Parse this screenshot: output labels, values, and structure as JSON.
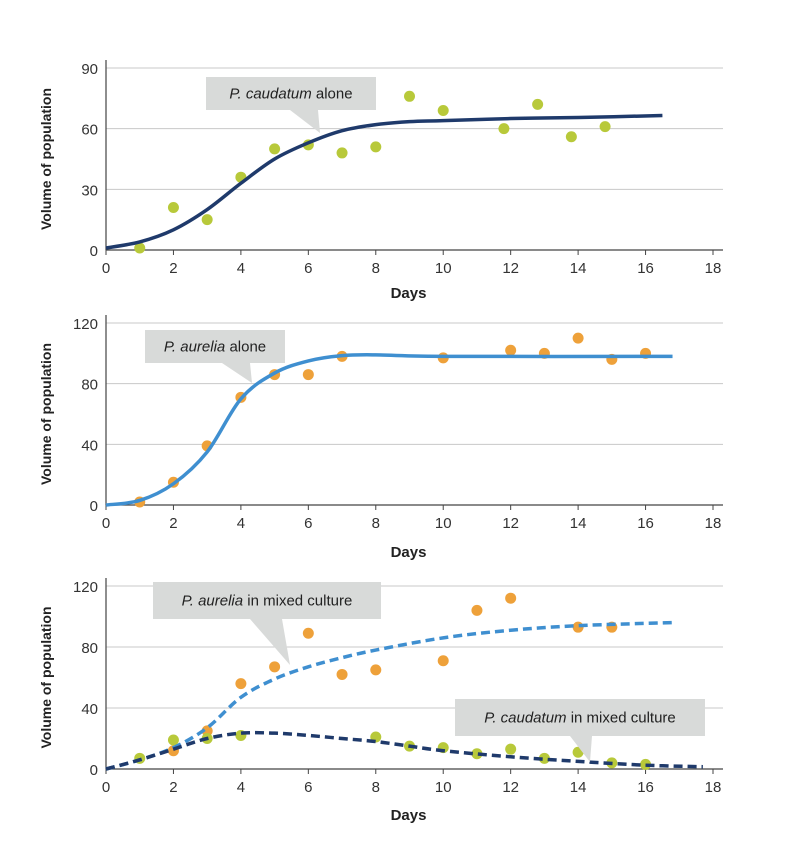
{
  "colors": {
    "green_dot": "#b8c93a",
    "orange_dot": "#eea13a",
    "dark_curve": "#1f3a6b",
    "light_curve": "#3f8fd0",
    "callout": "#d8dad9",
    "grid": "#c8c8c8"
  },
  "chart_data": [
    {
      "type": "scatter",
      "xlabel": "Days",
      "ylabel": "Volume of population",
      "xlim": [
        0,
        18
      ],
      "ylim": [
        0,
        90
      ],
      "xticks": [
        "0",
        "2",
        "4",
        "6",
        "8",
        "10",
        "12",
        "14",
        "16",
        "18"
      ],
      "yticks": [
        "0",
        "30",
        "60",
        "90"
      ],
      "grid": true,
      "annotation": {
        "italic": "P. caudatum",
        "rest": " alone"
      },
      "series": [
        {
          "kind": "points",
          "color": "green_dot",
          "x": [
            1,
            2,
            3,
            4,
            5,
            6,
            7,
            8,
            9,
            10,
            11.8,
            12.8,
            13.8,
            14.8
          ],
          "y": [
            1,
            21,
            15,
            36,
            50,
            52,
            48,
            51,
            76,
            69,
            60,
            72,
            56,
            61
          ]
        },
        {
          "kind": "curve",
          "color": "dark_curve",
          "dashed": false,
          "x": [
            0,
            1,
            2,
            3,
            4,
            5,
            6,
            7,
            8,
            9,
            10,
            12,
            14,
            16.5
          ],
          "y": [
            1,
            4,
            10,
            20,
            33,
            45,
            53,
            59,
            62,
            63.5,
            64,
            65,
            65.5,
            66.5
          ]
        }
      ]
    },
    {
      "type": "scatter",
      "xlabel": "Days",
      "ylabel": "Volume of population",
      "xlim": [
        0,
        18
      ],
      "ylim": [
        0,
        120
      ],
      "xticks": [
        "0",
        "2",
        "4",
        "6",
        "8",
        "10",
        "12",
        "14",
        "16",
        "18"
      ],
      "yticks": [
        "0",
        "40",
        "80",
        "120"
      ],
      "grid": true,
      "annotation": {
        "italic": "P. aurelia",
        "rest": " alone"
      },
      "series": [
        {
          "kind": "points",
          "color": "orange_dot",
          "x": [
            1,
            2,
            3,
            4,
            5,
            6,
            7,
            10,
            12,
            13,
            14,
            15,
            16
          ],
          "y": [
            2,
            15,
            39,
            71,
            86,
            86,
            98,
            97,
            102,
            100,
            110,
            96,
            100
          ]
        },
        {
          "kind": "curve",
          "color": "light_curve",
          "dashed": false,
          "x": [
            0,
            1,
            2,
            3,
            4,
            5,
            6,
            7,
            8,
            10,
            16.8
          ],
          "y": [
            0,
            3,
            14,
            35,
            70,
            87,
            95,
            98.5,
            99,
            98,
            98
          ]
        }
      ]
    },
    {
      "type": "scatter",
      "xlabel": "Days",
      "ylabel": "Volume of population",
      "xlim": [
        0,
        18
      ],
      "ylim": [
        0,
        120
      ],
      "xticks": [
        "0",
        "2",
        "4",
        "6",
        "8",
        "10",
        "12",
        "14",
        "16",
        "18"
      ],
      "yticks": [
        "0",
        "40",
        "80",
        "120"
      ],
      "grid": true,
      "annotations": [
        {
          "italic": "P. aurelia",
          "rest": " in mixed culture"
        },
        {
          "italic": "P. caudatum",
          "rest": " in mixed culture"
        }
      ],
      "series": [
        {
          "kind": "points",
          "color": "orange_dot",
          "x": [
            2,
            3,
            4,
            5,
            6,
            7,
            8,
            10,
            11,
            12,
            14,
            15
          ],
          "y": [
            12,
            25,
            56,
            67,
            89,
            62,
            65,
            71,
            104,
            112,
            93,
            93
          ]
        },
        {
          "kind": "points",
          "color": "green_dot",
          "x": [
            1,
            2,
            3,
            4,
            8,
            9,
            10,
            11,
            12,
            13,
            14,
            15,
            16
          ],
          "y": [
            7,
            19,
            20,
            22,
            21,
            15,
            14,
            10,
            13,
            7,
            11,
            4,
            3
          ]
        },
        {
          "kind": "curve",
          "color": "light_curve",
          "dashed": true,
          "x": [
            0,
            1,
            2,
            3,
            4,
            5,
            6,
            7,
            8,
            10,
            12,
            14,
            16.8
          ],
          "y": [
            0,
            6,
            14,
            27,
            47,
            59,
            67,
            73,
            78,
            86,
            91,
            94,
            96
          ]
        },
        {
          "kind": "curve",
          "color": "dark_curve",
          "dashed": true,
          "x": [
            0,
            1,
            2,
            3,
            4,
            5,
            6,
            7,
            8,
            9,
            10,
            12,
            14,
            16,
            17.7
          ],
          "y": [
            0,
            6,
            13,
            20,
            23.5,
            23.5,
            22,
            20,
            18,
            15,
            12,
            8,
            5,
            2.5,
            1.5
          ]
        }
      ]
    }
  ]
}
